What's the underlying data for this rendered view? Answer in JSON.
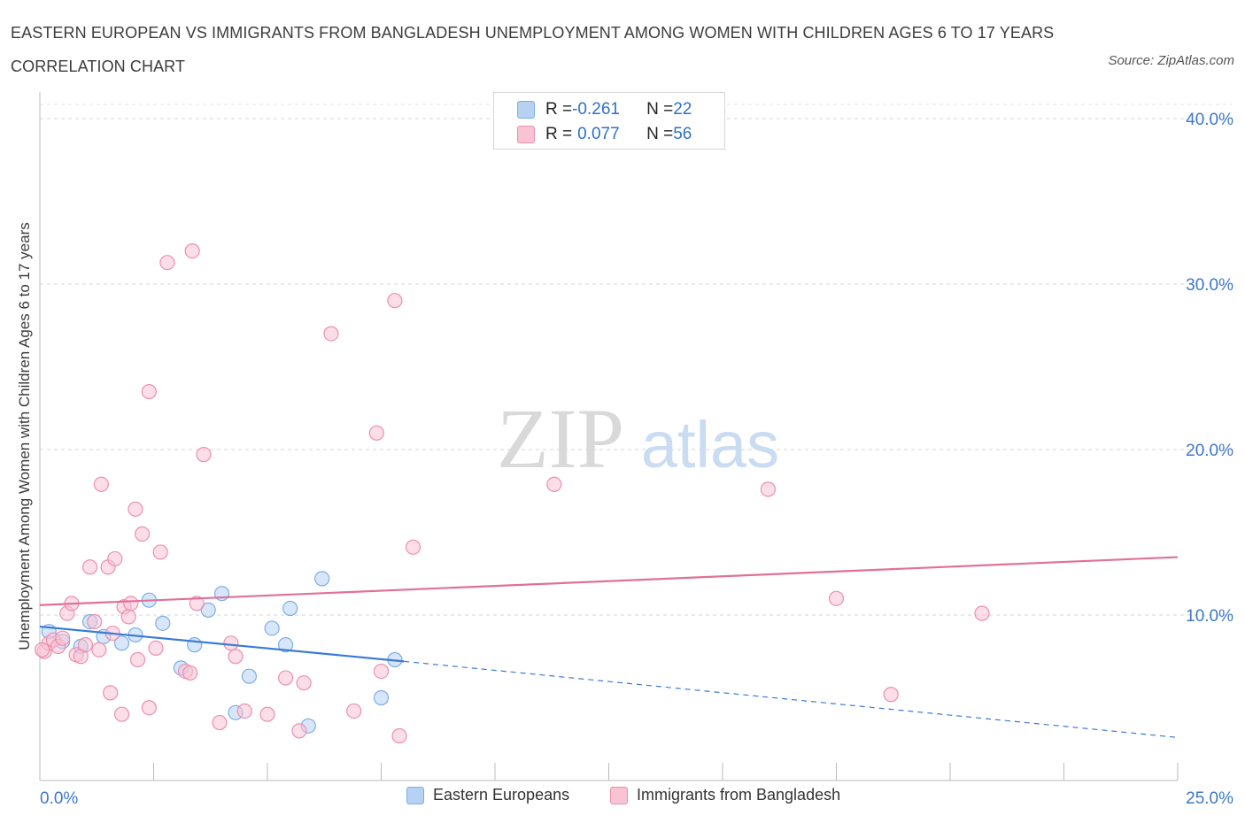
{
  "title": "EASTERN EUROPEAN VS IMMIGRANTS FROM BANGLADESH UNEMPLOYMENT AMONG WOMEN WITH CHILDREN AGES 6 TO 17 YEARS CORRELATION CHART",
  "source": "Source: ZipAtlas.com",
  "watermark": {
    "zip": "ZIP",
    "atlas": "atlas"
  },
  "stats": {
    "r_label": "R = ",
    "n_label": "N = ",
    "rows": [
      {
        "r": "-0.261",
        "n": "22"
      },
      {
        "r": "0.077",
        "n": "56"
      }
    ]
  },
  "chart_data": {
    "type": "scatter",
    "title": "EASTERN EUROPEAN VS IMMIGRANTS FROM BANGLADESH UNEMPLOYMENT AMONG WOMEN WITH CHILDREN AGES 6 TO 17 YEARS CORRELATION CHART",
    "xlabel": "",
    "ylabel": "Unemployment Among Women with Children Ages 6 to 17 years",
    "xlim": [
      0,
      25
    ],
    "ylim": [
      0,
      40
    ],
    "x_tick_labels": [
      "0.0%",
      "25.0%"
    ],
    "y_ticks": [
      10,
      20,
      30,
      40
    ],
    "y_tick_labels": [
      "10.0%",
      "20.0%",
      "30.0%",
      "40.0%"
    ],
    "grid": true,
    "legend": "bottom-center",
    "series": [
      {
        "name": "Eastern Europeans",
        "color": "#7baee8",
        "fill": "#b7d1f2",
        "R": -0.261,
        "N": 22,
        "trend": {
          "x0": 0,
          "y0": 9.3,
          "x1": 8.0,
          "y1": 7.2,
          "dash_to_x": 25,
          "dash_to_y": 2.6
        },
        "points": [
          [
            0.2,
            9.0
          ],
          [
            0.5,
            8.4
          ],
          [
            0.9,
            8.1
          ],
          [
            1.1,
            9.6
          ],
          [
            1.4,
            8.7
          ],
          [
            1.8,
            8.3
          ],
          [
            2.1,
            8.8
          ],
          [
            2.4,
            10.9
          ],
          [
            2.7,
            9.5
          ],
          [
            3.1,
            6.8
          ],
          [
            3.4,
            8.2
          ],
          [
            3.7,
            10.3
          ],
          [
            4.0,
            11.3
          ],
          [
            4.3,
            4.1
          ],
          [
            4.6,
            6.3
          ],
          [
            5.1,
            9.2
          ],
          [
            5.4,
            8.2
          ],
          [
            5.5,
            10.4
          ],
          [
            5.9,
            3.3
          ],
          [
            6.2,
            12.2
          ],
          [
            7.5,
            5.0
          ],
          [
            7.8,
            7.3
          ]
        ]
      },
      {
        "name": "Immigrants from Bangladesh",
        "color": "#ec8fae",
        "fill": "#f8c3d3",
        "R": 0.077,
        "N": 56,
        "trend": {
          "x0": 0,
          "y0": 10.6,
          "x1": 25,
          "y1": 13.5
        },
        "points": [
          [
            0.1,
            7.8
          ],
          [
            0.2,
            8.3
          ],
          [
            0.3,
            8.5
          ],
          [
            0.4,
            8.1
          ],
          [
            0.5,
            8.6
          ],
          [
            0.6,
            10.1
          ],
          [
            0.7,
            10.7
          ],
          [
            0.8,
            7.6
          ],
          [
            0.9,
            7.5
          ],
          [
            1.0,
            8.2
          ],
          [
            1.1,
            12.9
          ],
          [
            1.2,
            9.6
          ],
          [
            1.3,
            7.9
          ],
          [
            1.35,
            17.9
          ],
          [
            1.5,
            12.9
          ],
          [
            1.6,
            8.9
          ],
          [
            1.55,
            5.3
          ],
          [
            1.65,
            13.4
          ],
          [
            1.8,
            4.0
          ],
          [
            1.85,
            10.5
          ],
          [
            1.95,
            9.9
          ],
          [
            2.0,
            10.7
          ],
          [
            2.1,
            16.4
          ],
          [
            2.15,
            7.3
          ],
          [
            2.25,
            14.9
          ],
          [
            2.4,
            23.5
          ],
          [
            2.4,
            4.4
          ],
          [
            2.55,
            8.0
          ],
          [
            2.65,
            13.8
          ],
          [
            2.8,
            31.3
          ],
          [
            3.2,
            6.6
          ],
          [
            3.3,
            6.5
          ],
          [
            3.35,
            32.0
          ],
          [
            3.45,
            10.7
          ],
          [
            3.6,
            19.7
          ],
          [
            3.95,
            3.5
          ],
          [
            4.2,
            8.3
          ],
          [
            4.3,
            7.5
          ],
          [
            4.5,
            4.2
          ],
          [
            5.0,
            4.0
          ],
          [
            5.4,
            6.2
          ],
          [
            5.7,
            3.0
          ],
          [
            5.8,
            5.9
          ],
          [
            6.4,
            27.0
          ],
          [
            6.9,
            4.2
          ],
          [
            7.4,
            21.0
          ],
          [
            7.5,
            6.6
          ],
          [
            7.8,
            29.0
          ],
          [
            7.9,
            2.7
          ],
          [
            8.2,
            14.1
          ],
          [
            11.3,
            17.9
          ],
          [
            16.0,
            17.6
          ],
          [
            17.5,
            11.0
          ],
          [
            18.7,
            5.2
          ],
          [
            20.7,
            10.1
          ],
          [
            0.05,
            7.9
          ]
        ]
      }
    ]
  }
}
